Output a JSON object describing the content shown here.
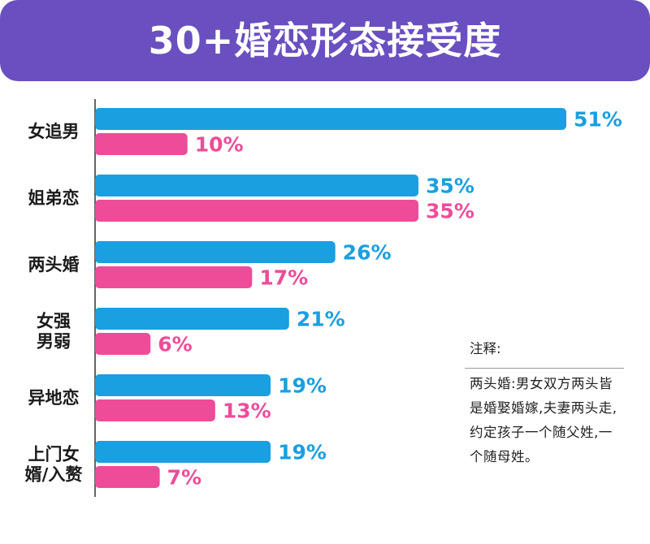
{
  "title": "30+婚恋形态接受度",
  "colors": {
    "header": "#6a4fc0",
    "male": "#1a9fe0",
    "female": "#ee4c98",
    "axis": "#333333"
  },
  "chart_data": {
    "type": "bar",
    "orientation": "horizontal",
    "title": "30+婚恋形态接受度",
    "categories": [
      [
        "女追男"
      ],
      [
        "姐弟恋"
      ],
      [
        "两头婚"
      ],
      [
        "女强",
        "男弱"
      ],
      [
        "异地恋"
      ],
      [
        "上门女",
        "婿/入赘"
      ]
    ],
    "series": [
      {
        "values": [
          51,
          35,
          26,
          21,
          19,
          19
        ],
        "labels": [
          "51%",
          "35%",
          "26%",
          "21%",
          "19%",
          "19%"
        ]
      },
      {
        "values": [
          10,
          35,
          17,
          6,
          13,
          7
        ],
        "labels": [
          "10%",
          "35%",
          "17%",
          "6%",
          "13%",
          "7%"
        ]
      }
    ],
    "xlim": [
      0,
      51
    ],
    "grid": false,
    "legend": "none"
  },
  "note": {
    "title": "注释:",
    "body": "两头婚:男女双方两头皆是婚娶婚嫁,夫妻两头走,约定孩子一个随父姓,一个随母姓。"
  }
}
